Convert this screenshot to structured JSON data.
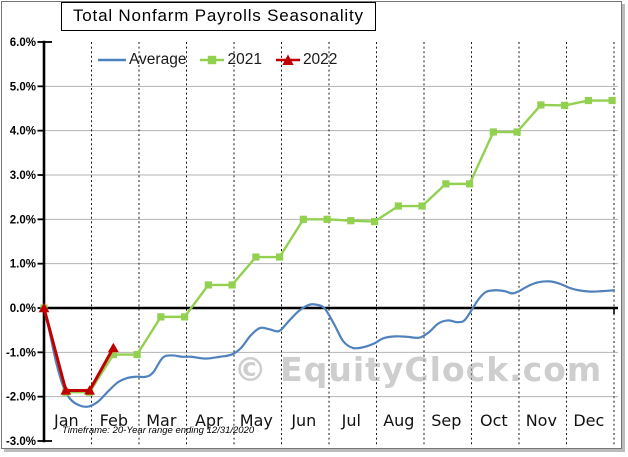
{
  "title": "Total Nonfarm Payrolls Seasonality",
  "watermark": "© EquityClock.com",
  "footnote": "Timeframe: 20-Year range ending 12/31/2020",
  "legend": {
    "items": [
      {
        "label": "Average",
        "color": "#4F81BD",
        "marker": "line"
      },
      {
        "label": "2021",
        "color": "#92D050",
        "marker": "square"
      },
      {
        "label": "2022",
        "color": "#C00000",
        "marker": "triangle-up"
      }
    ]
  },
  "chart_data": {
    "type": "line",
    "title": "Total Nonfarm Payrolls Seasonality",
    "xlabel": "",
    "ylabel": "",
    "x_axis": {
      "categories": [
        "Jan",
        "Feb",
        "Mar",
        "Apr",
        "May",
        "Jun",
        "Jul",
        "Aug",
        "Sep",
        "Oct",
        "Nov",
        "Dec"
      ],
      "unit": "month (x = months since Jan 1, 0 to 12)"
    },
    "y_axis": {
      "min": -3.0,
      "max": 6.0,
      "step": 1.0,
      "format": "percent",
      "labels": [
        "6.0%",
        "5.0%",
        "4.0%",
        "3.0%",
        "2.0%",
        "1.0%",
        "0.0%",
        "-1.0%",
        "-2.0%",
        "-3.0%"
      ]
    },
    "grid": {
      "horizontal": true,
      "vertical_month_separators": true,
      "grid_color": "#b3b3b3"
    },
    "legend_position": "top-inside",
    "series": [
      {
        "name": "Average",
        "color": "#4F81BD",
        "line": "smooth",
        "marker": "none",
        "points": [
          [
            0,
            0
          ],
          [
            0.12,
            -0.55
          ],
          [
            0.25,
            -1.2
          ],
          [
            0.4,
            -1.75
          ],
          [
            0.55,
            -2.05
          ],
          [
            0.75,
            -2.2
          ],
          [
            0.95,
            -2.22
          ],
          [
            1.15,
            -2.1
          ],
          [
            1.35,
            -1.88
          ],
          [
            1.55,
            -1.68
          ],
          [
            1.75,
            -1.58
          ],
          [
            1.95,
            -1.55
          ],
          [
            2.15,
            -1.55
          ],
          [
            2.3,
            -1.45
          ],
          [
            2.5,
            -1.12
          ],
          [
            2.7,
            -1.07
          ],
          [
            2.9,
            -1.1
          ],
          [
            3.1,
            -1.1
          ],
          [
            3.4,
            -1.14
          ],
          [
            3.7,
            -1.1
          ],
          [
            3.95,
            -1.05
          ],
          [
            4.15,
            -0.9
          ],
          [
            4.35,
            -0.62
          ],
          [
            4.55,
            -0.45
          ],
          [
            4.75,
            -0.48
          ],
          [
            4.95,
            -0.52
          ],
          [
            5.15,
            -0.3
          ],
          [
            5.35,
            -0.08
          ],
          [
            5.55,
            0.06
          ],
          [
            5.7,
            0.08
          ],
          [
            5.9,
            0.0
          ],
          [
            6.1,
            -0.35
          ],
          [
            6.3,
            -0.75
          ],
          [
            6.5,
            -0.9
          ],
          [
            6.7,
            -0.89
          ],
          [
            6.95,
            -0.8
          ],
          [
            7.15,
            -0.68
          ],
          [
            7.4,
            -0.64
          ],
          [
            7.65,
            -0.65
          ],
          [
            7.9,
            -0.67
          ],
          [
            8.1,
            -0.55
          ],
          [
            8.3,
            -0.35
          ],
          [
            8.5,
            -0.28
          ],
          [
            8.7,
            -0.32
          ],
          [
            8.85,
            -0.28
          ],
          [
            9.0,
            -0.05
          ],
          [
            9.15,
            0.2
          ],
          [
            9.3,
            0.36
          ],
          [
            9.5,
            0.4
          ],
          [
            9.7,
            0.38
          ],
          [
            9.85,
            0.33
          ],
          [
            10.0,
            0.38
          ],
          [
            10.2,
            0.5
          ],
          [
            10.4,
            0.58
          ],
          [
            10.65,
            0.6
          ],
          [
            10.85,
            0.55
          ],
          [
            11.05,
            0.46
          ],
          [
            11.25,
            0.4
          ],
          [
            11.5,
            0.37
          ],
          [
            11.75,
            0.38
          ],
          [
            12,
            0.4
          ]
        ]
      },
      {
        "name": "2021",
        "color": "#92D050",
        "line": "straight",
        "marker": "square",
        "points": [
          [
            0,
            0
          ],
          [
            0.46,
            -1.9
          ],
          [
            0.96,
            -1.9
          ],
          [
            1.46,
            -1.05
          ],
          [
            1.96,
            -1.05
          ],
          [
            2.46,
            -0.2
          ],
          [
            2.96,
            -0.2
          ],
          [
            3.46,
            0.52
          ],
          [
            3.96,
            0.52
          ],
          [
            4.46,
            1.15
          ],
          [
            4.96,
            1.15
          ],
          [
            5.46,
            2.0
          ],
          [
            5.96,
            2.0
          ],
          [
            6.46,
            1.97
          ],
          [
            6.96,
            1.95
          ],
          [
            7.46,
            2.3
          ],
          [
            7.96,
            2.3
          ],
          [
            8.46,
            2.8
          ],
          [
            8.96,
            2.8
          ],
          [
            9.46,
            3.97
          ],
          [
            9.96,
            3.97
          ],
          [
            10.46,
            4.58
          ],
          [
            10.96,
            4.57
          ],
          [
            11.46,
            4.68
          ],
          [
            11.96,
            4.68
          ]
        ]
      },
      {
        "name": "2022",
        "color": "#C00000",
        "line": "straight",
        "marker": "triangle-up",
        "points": [
          [
            0,
            0
          ],
          [
            0.46,
            -1.86
          ],
          [
            0.96,
            -1.86
          ],
          [
            1.46,
            -0.9
          ]
        ]
      }
    ]
  }
}
